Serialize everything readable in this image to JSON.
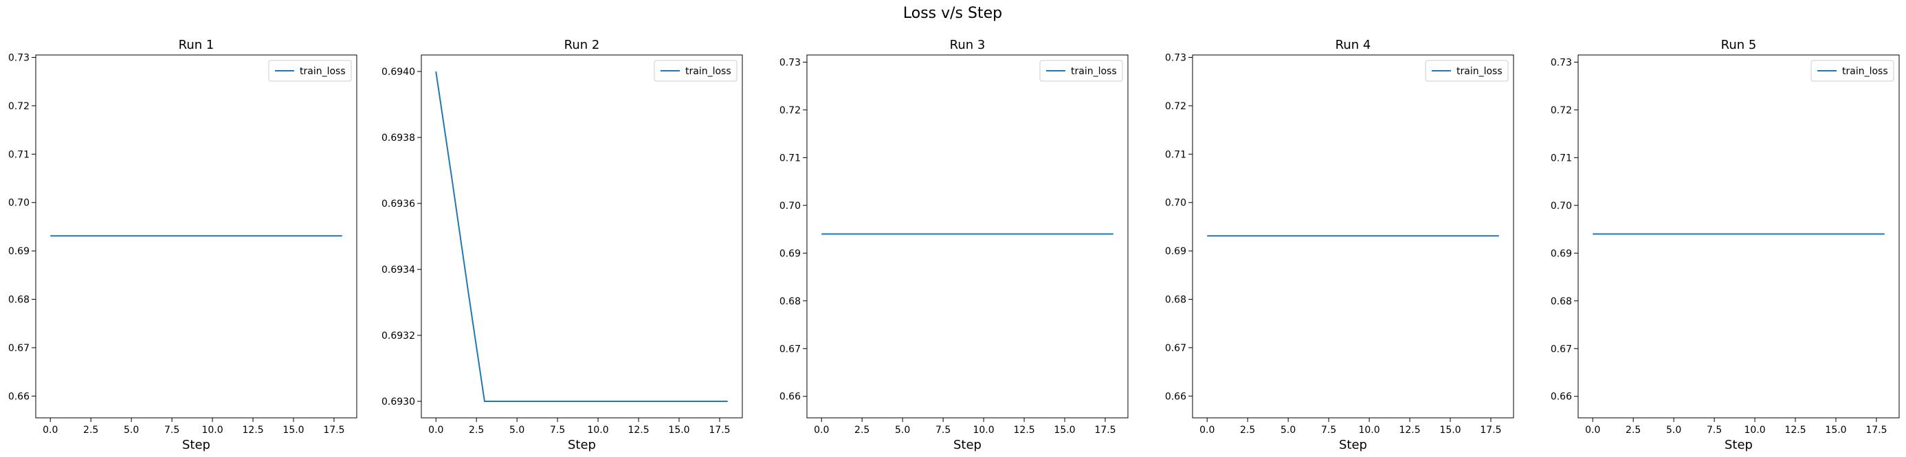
{
  "figure": {
    "title": "Loss v/s Step",
    "line_color": "#1f77b4"
  },
  "chart_data": [
    {
      "type": "line",
      "title": "Run 1",
      "xlabel": "Step",
      "ylabel": "",
      "xlim": [
        -0.9,
        18.9
      ],
      "ylim": [
        0.6555,
        0.7305
      ],
      "xticks": [
        "0.0",
        "2.5",
        "5.0",
        "7.5",
        "10.0",
        "12.5",
        "15.0",
        "17.5"
      ],
      "yticks": [
        "0.66",
        "0.67",
        "0.68",
        "0.69",
        "0.70",
        "0.71",
        "0.72",
        "0.73"
      ],
      "legend": "top-right",
      "series": [
        {
          "name": "train_loss",
          "x": [
            0,
            1,
            2,
            3,
            4,
            5,
            6,
            7,
            8,
            9,
            10,
            11,
            12,
            13,
            14,
            15,
            16,
            17,
            18
          ],
          "y": [
            0.6931,
            0.6931,
            0.6931,
            0.6931,
            0.6931,
            0.6931,
            0.6931,
            0.6931,
            0.6931,
            0.6931,
            0.6931,
            0.6931,
            0.6931,
            0.6931,
            0.6931,
            0.6931,
            0.6931,
            0.6931,
            0.6931
          ]
        }
      ]
    },
    {
      "type": "line",
      "title": "Run 2",
      "xlabel": "Step",
      "ylabel": "",
      "xlim": [
        -0.9,
        18.9
      ],
      "ylim": [
        0.69295,
        0.69405
      ],
      "xticks": [
        "0.0",
        "2.5",
        "5.0",
        "7.5",
        "10.0",
        "12.5",
        "15.0",
        "17.5"
      ],
      "yticks": [
        "0.6930",
        "0.6932",
        "0.6934",
        "0.6936",
        "0.6938",
        "0.6940"
      ],
      "legend": "top-right",
      "series": [
        {
          "name": "train_loss",
          "x": [
            0,
            1,
            2,
            3,
            4,
            5,
            6,
            7,
            8,
            9,
            10,
            11,
            12,
            13,
            14,
            15,
            16,
            17,
            18
          ],
          "y": [
            0.694,
            0.69367,
            0.69333,
            0.693,
            0.693,
            0.693,
            0.693,
            0.693,
            0.693,
            0.693,
            0.693,
            0.693,
            0.693,
            0.693,
            0.693,
            0.693,
            0.693,
            0.693,
            0.693
          ]
        }
      ]
    },
    {
      "type": "line",
      "title": "Run 3",
      "xlabel": "Step",
      "ylabel": "",
      "xlim": [
        -0.9,
        18.9
      ],
      "ylim": [
        0.6555,
        0.7315
      ],
      "xticks": [
        "0.0",
        "2.5",
        "5.0",
        "7.5",
        "10.0",
        "12.5",
        "15.0",
        "17.5"
      ],
      "yticks": [
        "0.66",
        "0.67",
        "0.68",
        "0.69",
        "0.70",
        "0.71",
        "0.72",
        "0.73"
      ],
      "legend": "top-right",
      "series": [
        {
          "name": "train_loss",
          "x": [
            0,
            1,
            2,
            3,
            4,
            5,
            6,
            7,
            8,
            9,
            10,
            11,
            12,
            13,
            14,
            15,
            16,
            17,
            18
          ],
          "y": [
            0.694,
            0.694,
            0.694,
            0.694,
            0.694,
            0.694,
            0.694,
            0.694,
            0.694,
            0.694,
            0.694,
            0.694,
            0.694,
            0.694,
            0.694,
            0.694,
            0.694,
            0.694,
            0.694
          ]
        }
      ]
    },
    {
      "type": "line",
      "title": "Run 4",
      "xlabel": "Step",
      "ylabel": "",
      "xlim": [
        -0.9,
        18.9
      ],
      "ylim": [
        0.6555,
        0.7305
      ],
      "xticks": [
        "0.0",
        "2.5",
        "5.0",
        "7.5",
        "10.0",
        "12.5",
        "15.0",
        "17.5"
      ],
      "yticks": [
        "0.66",
        "0.67",
        "0.68",
        "0.69",
        "0.70",
        "0.71",
        "0.72",
        "0.73"
      ],
      "legend": "top-right",
      "series": [
        {
          "name": "train_loss",
          "x": [
            0,
            1,
            2,
            3,
            4,
            5,
            6,
            7,
            8,
            9,
            10,
            11,
            12,
            13,
            14,
            15,
            16,
            17,
            18
          ],
          "y": [
            0.6931,
            0.6931,
            0.6931,
            0.6931,
            0.6931,
            0.6931,
            0.6931,
            0.6931,
            0.6931,
            0.6931,
            0.6931,
            0.6931,
            0.6931,
            0.6931,
            0.6931,
            0.6931,
            0.6931,
            0.6931,
            0.6931
          ]
        }
      ]
    },
    {
      "type": "line",
      "title": "Run 5",
      "xlabel": "Step",
      "ylabel": "",
      "xlim": [
        -0.9,
        18.9
      ],
      "ylim": [
        0.6555,
        0.7315
      ],
      "xticks": [
        "0.0",
        "2.5",
        "5.0",
        "7.5",
        "10.0",
        "12.5",
        "15.0",
        "17.5"
      ],
      "yticks": [
        "0.66",
        "0.67",
        "0.68",
        "0.69",
        "0.70",
        "0.71",
        "0.72",
        "0.73"
      ],
      "legend": "top-right",
      "series": [
        {
          "name": "train_loss",
          "x": [
            0,
            1,
            2,
            3,
            4,
            5,
            6,
            7,
            8,
            9,
            10,
            11,
            12,
            13,
            14,
            15,
            16,
            17,
            18
          ],
          "y": [
            0.694,
            0.694,
            0.694,
            0.694,
            0.694,
            0.694,
            0.694,
            0.694,
            0.694,
            0.694,
            0.694,
            0.694,
            0.694,
            0.694,
            0.694,
            0.694,
            0.694,
            0.694,
            0.694
          ]
        }
      ]
    }
  ]
}
